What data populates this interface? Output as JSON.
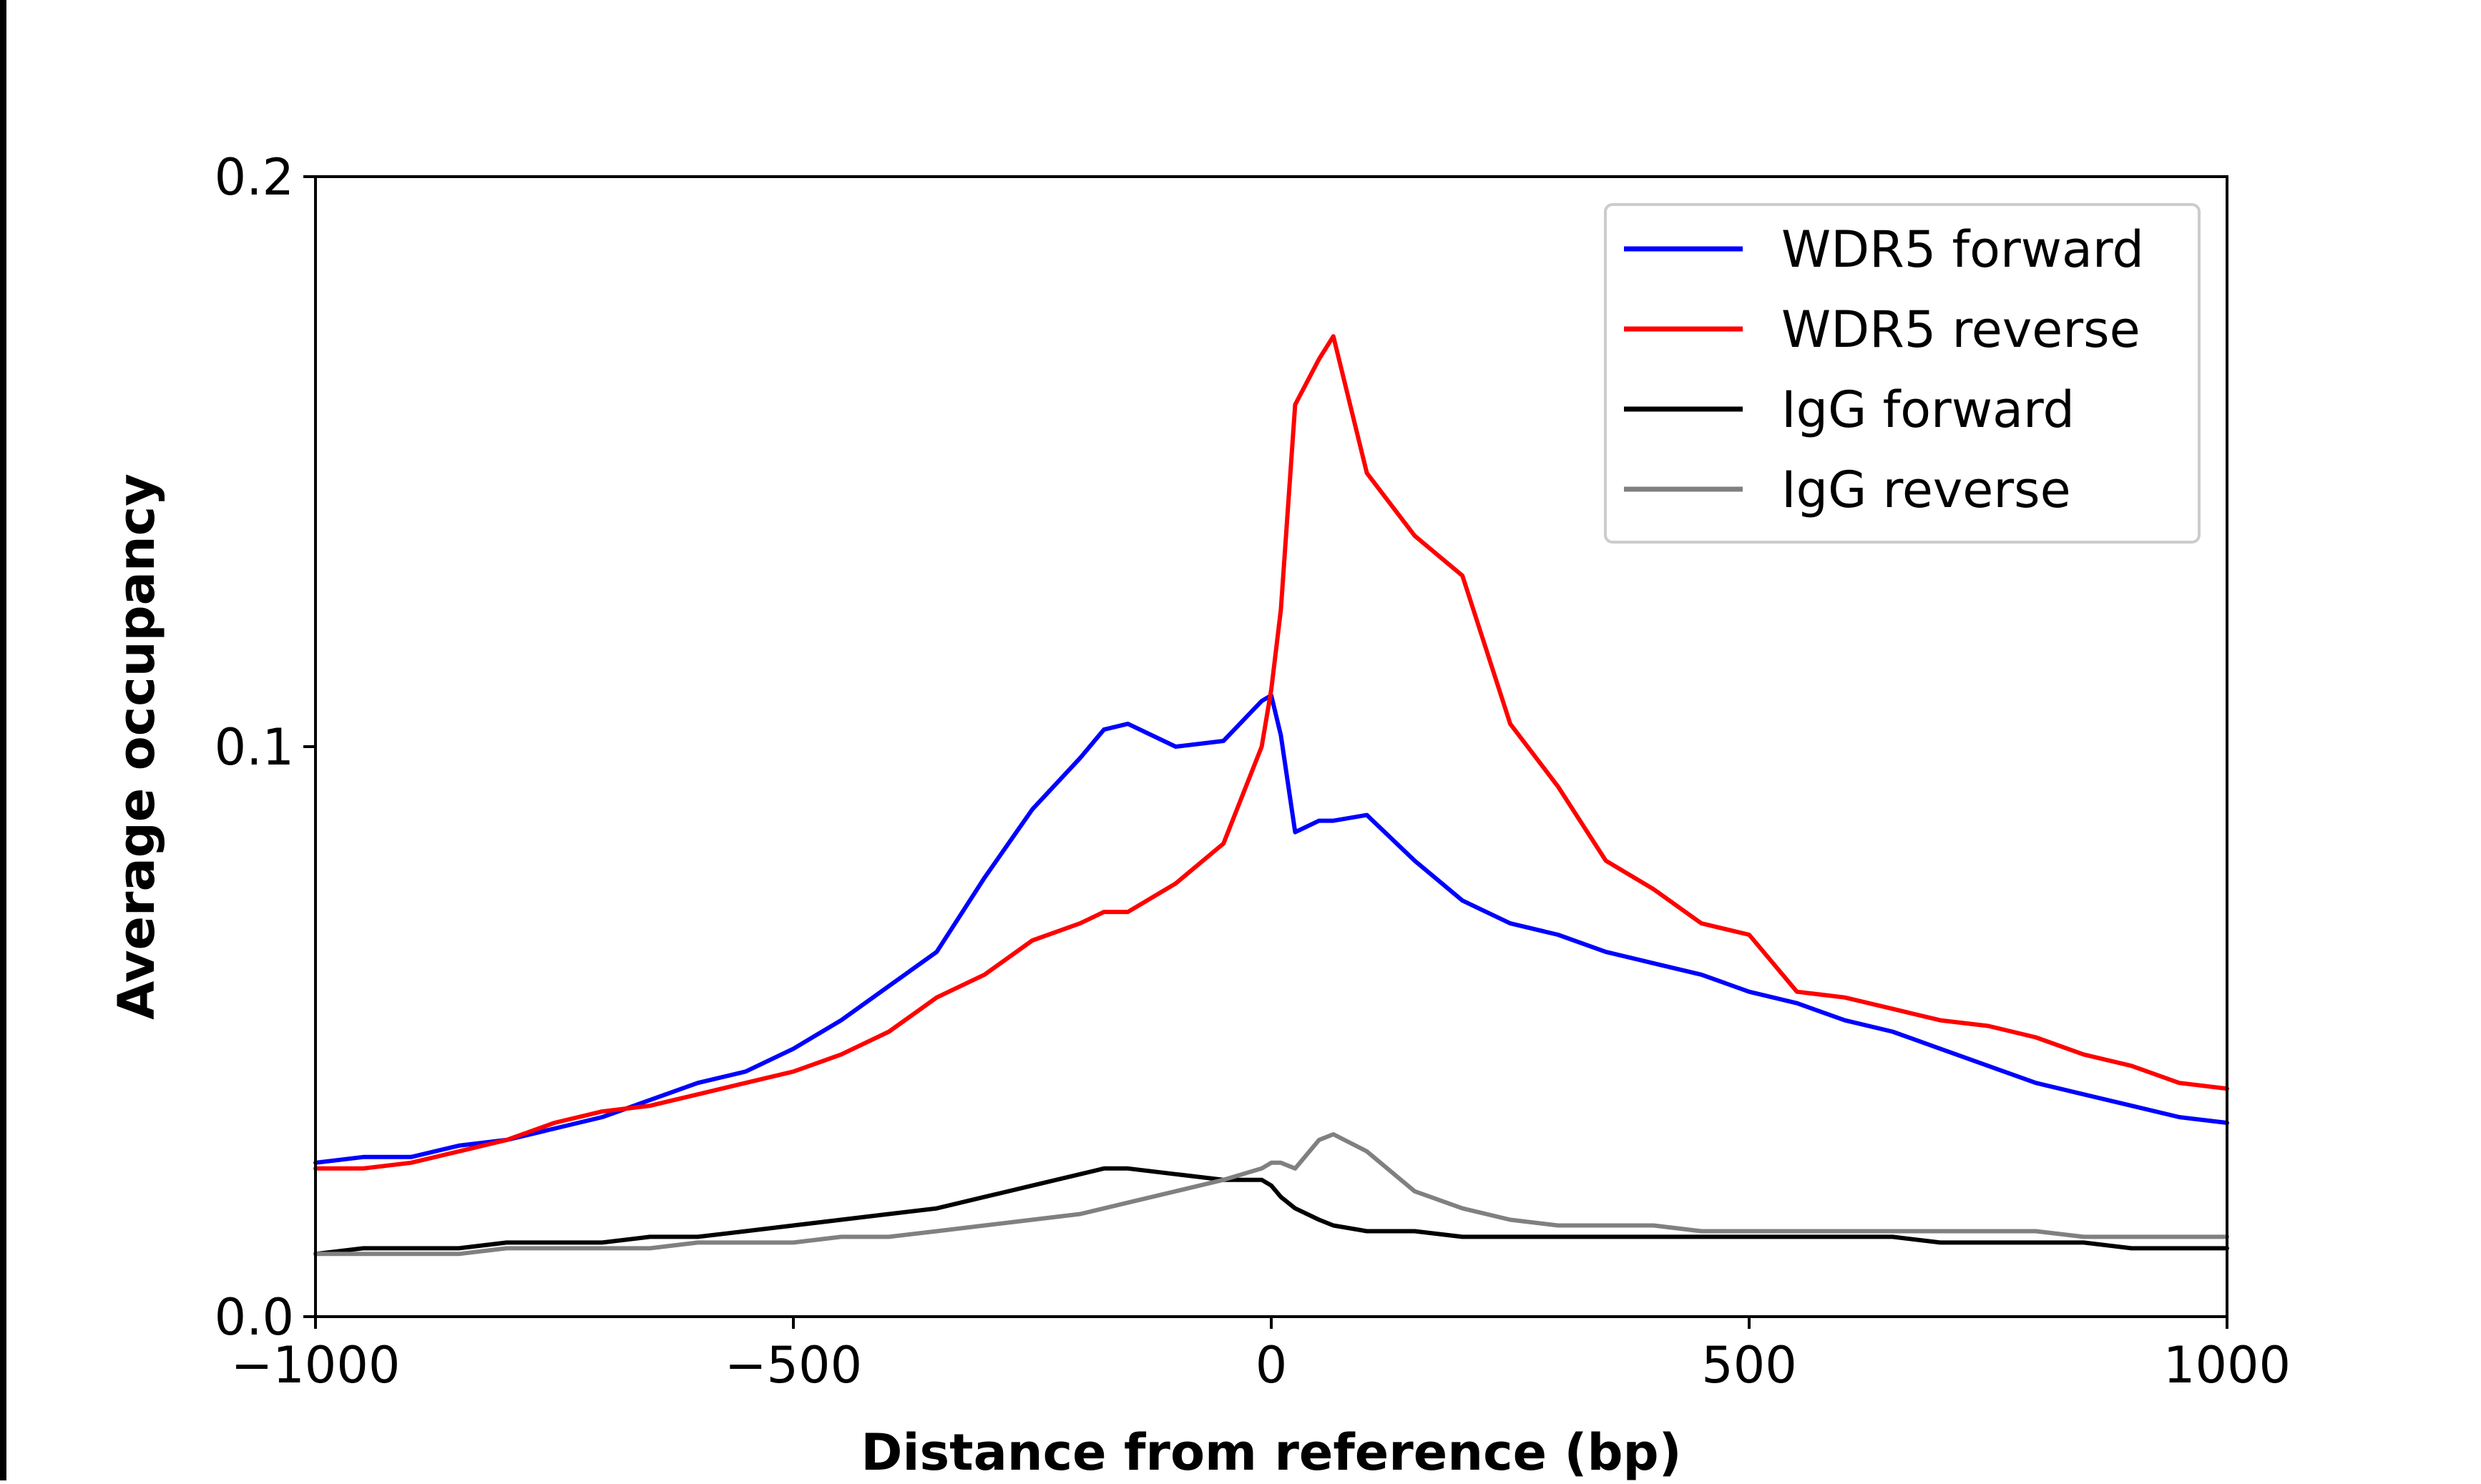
{
  "chart_data": {
    "type": "line",
    "title": "",
    "xlabel": "Distance from reference (bp)",
    "ylabel": "Average occupancy",
    "xlim": [
      -1000,
      1000
    ],
    "ylim": [
      0.0,
      0.2
    ],
    "xticks": [
      -1000,
      -500,
      0,
      500,
      1000
    ],
    "xtick_labels": [
      "−1000",
      "−500",
      "0",
      "500",
      "1000"
    ],
    "yticks": [
      0.0,
      0.1,
      0.2
    ],
    "ytick_labels": [
      "0.0",
      "0.1",
      "0.2"
    ],
    "grid": false,
    "legend_position": "top-right",
    "x": [
      -1000,
      -950,
      -900,
      -850,
      -800,
      -750,
      -700,
      -650,
      -600,
      -550,
      -500,
      -450,
      -400,
      -350,
      -300,
      -250,
      -200,
      -175,
      -150,
      -100,
      -50,
      -10,
      0,
      10,
      25,
      50,
      65,
      100,
      150,
      200,
      250,
      300,
      350,
      400,
      450,
      500,
      550,
      600,
      650,
      700,
      750,
      800,
      850,
      900,
      950,
      1000
    ],
    "series": [
      {
        "name": "WDR5 forward",
        "color": "#0000ff",
        "values": [
          0.027,
          0.028,
          0.028,
          0.03,
          0.031,
          0.033,
          0.035,
          0.038,
          0.041,
          0.043,
          0.047,
          0.052,
          0.058,
          0.064,
          0.077,
          0.089,
          0.098,
          0.103,
          0.104,
          0.1,
          0.101,
          0.108,
          0.109,
          0.102,
          0.085,
          0.087,
          0.087,
          0.088,
          0.08,
          0.073,
          0.069,
          0.067,
          0.064,
          0.062,
          0.06,
          0.057,
          0.055,
          0.052,
          0.05,
          0.047,
          0.044,
          0.041,
          0.039,
          0.037,
          0.035,
          0.034
        ]
      },
      {
        "name": "WDR5 reverse",
        "color": "#ff0000",
        "values": [
          0.026,
          0.026,
          0.027,
          0.029,
          0.031,
          0.034,
          0.036,
          0.037,
          0.039,
          0.041,
          0.043,
          0.046,
          0.05,
          0.056,
          0.06,
          0.066,
          0.069,
          0.071,
          0.071,
          0.076,
          0.083,
          0.1,
          0.11,
          0.124,
          0.16,
          0.168,
          0.172,
          0.148,
          0.137,
          0.13,
          0.104,
          0.093,
          0.08,
          0.075,
          0.069,
          0.067,
          0.057,
          0.056,
          0.054,
          0.052,
          0.051,
          0.049,
          0.046,
          0.044,
          0.041,
          0.04
        ]
      },
      {
        "name": "IgG forward",
        "color": "#000000",
        "values": [
          0.011,
          0.012,
          0.012,
          0.012,
          0.013,
          0.013,
          0.013,
          0.014,
          0.014,
          0.015,
          0.016,
          0.017,
          0.018,
          0.019,
          0.021,
          0.023,
          0.025,
          0.026,
          0.026,
          0.025,
          0.024,
          0.024,
          0.023,
          0.021,
          0.019,
          0.017,
          0.016,
          0.015,
          0.015,
          0.014,
          0.014,
          0.014,
          0.014,
          0.014,
          0.014,
          0.014,
          0.014,
          0.014,
          0.014,
          0.013,
          0.013,
          0.013,
          0.013,
          0.012,
          0.012,
          0.012
        ]
      },
      {
        "name": "IgG reverse",
        "color": "#808080",
        "values": [
          0.011,
          0.011,
          0.011,
          0.011,
          0.012,
          0.012,
          0.012,
          0.012,
          0.013,
          0.013,
          0.013,
          0.014,
          0.014,
          0.015,
          0.016,
          0.017,
          0.018,
          0.019,
          0.02,
          0.022,
          0.024,
          0.026,
          0.027,
          0.027,
          0.026,
          0.031,
          0.032,
          0.029,
          0.022,
          0.019,
          0.017,
          0.016,
          0.016,
          0.016,
          0.015,
          0.015,
          0.015,
          0.015,
          0.015,
          0.015,
          0.015,
          0.015,
          0.014,
          0.014,
          0.014,
          0.014
        ]
      }
    ]
  }
}
